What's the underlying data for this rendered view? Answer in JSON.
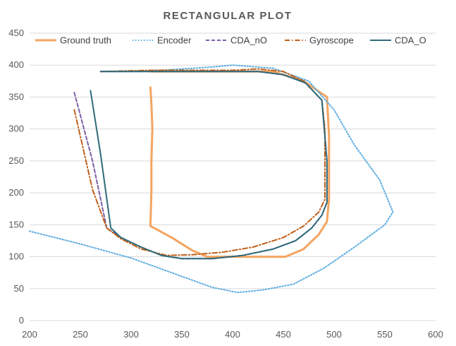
{
  "chart_data": {
    "type": "line",
    "title": "RECTANGULAR PLOT",
    "xlabel": "",
    "ylabel": "",
    "xlim": [
      200,
      600
    ],
    "ylim": [
      0,
      450
    ],
    "x_ticks": [
      "200",
      "250",
      "300",
      "350",
      "400",
      "450",
      "500",
      "550",
      "600"
    ],
    "y_ticks": [
      "0",
      "50",
      "100",
      "150",
      "200",
      "250",
      "300",
      "350",
      "400",
      "450"
    ],
    "grid": "horizontal",
    "legend_position": "top",
    "series": [
      {
        "name": "Ground truth",
        "color": "#f4a460",
        "style": "solid",
        "x": [
          319,
          320,
          321,
          320,
          320,
          319,
          340,
          360,
          375,
          400,
          430,
          452,
          470,
          485,
          493,
          495,
          495,
          493,
          470,
          440,
          420,
          390,
          360,
          320
        ],
        "y": [
          365,
          340,
          300,
          250,
          200,
          148,
          130,
          110,
          100,
          100,
          100,
          100,
          112,
          135,
          155,
          190,
          290,
          350,
          375,
          390,
          390,
          390,
          390,
          390
        ]
      },
      {
        "name": "Encoder",
        "color": "#5dade2",
        "style": "dotted",
        "x": [
          200,
          250,
          300,
          340,
          380,
          405,
          430,
          460,
          490,
          520,
          550,
          558,
          545,
          520,
          500,
          475,
          440,
          400,
          380,
          340,
          300,
          270
        ],
        "y": [
          140,
          120,
          98,
          75,
          52,
          44,
          48,
          57,
          82,
          115,
          150,
          170,
          220,
          275,
          330,
          375,
          395,
          400,
          397,
          393,
          390,
          390
        ]
      },
      {
        "name": "CDA_nO",
        "color": "#7b5ea7",
        "style": "dashed",
        "x": [
          244,
          262,
          276,
          290,
          310,
          330,
          350,
          380,
          410,
          440,
          462,
          478,
          488,
          493,
          493,
          488,
          472,
          450,
          425,
          400,
          360,
          320,
          270
        ],
        "y": [
          357,
          250,
          145,
          130,
          115,
          102,
          97,
          97,
          102,
          112,
          125,
          145,
          165,
          185,
          250,
          345,
          372,
          385,
          390,
          390,
          390,
          390,
          390
        ]
      },
      {
        "name": "Gyroscope",
        "color": "#c0601a",
        "style": "dashdot",
        "x": [
          244,
          262,
          276,
          290,
          310,
          335,
          360,
          390,
          420,
          450,
          470,
          485,
          491,
          491,
          488,
          470,
          450,
          425,
          400,
          360,
          320,
          270
        ],
        "y": [
          330,
          205,
          145,
          128,
          112,
          102,
          103,
          107,
          115,
          130,
          148,
          170,
          190,
          300,
          345,
          375,
          390,
          394,
          392,
          392,
          392,
          390
        ]
      },
      {
        "name": "CDA_O",
        "color": "#2e6b7a",
        "style": "solid",
        "x": [
          260,
          270,
          280,
          290,
          310,
          330,
          350,
          380,
          410,
          440,
          462,
          478,
          488,
          493,
          493,
          488,
          472,
          450,
          425,
          400,
          360,
          320,
          270
        ],
        "y": [
          360,
          260,
          145,
          130,
          115,
          102,
          97,
          97,
          102,
          112,
          125,
          145,
          165,
          185,
          250,
          345,
          372,
          385,
          390,
          390,
          390,
          390,
          390
        ]
      }
    ]
  }
}
